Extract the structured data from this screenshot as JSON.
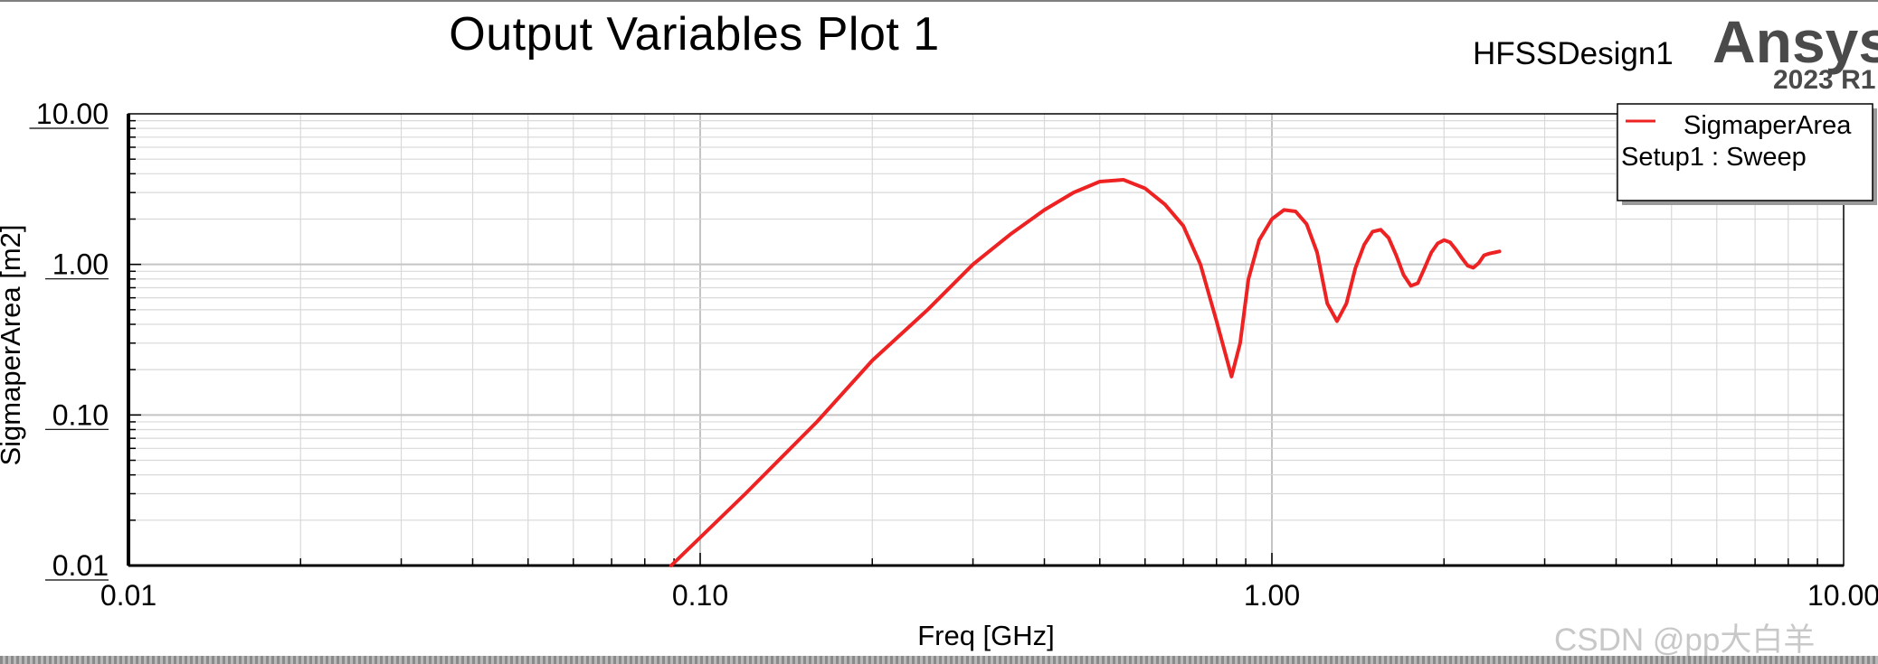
{
  "header": {
    "title": "Output Variables Plot 1",
    "design_name": "HFSSDesign1",
    "brand": "Ansys",
    "version": "2023 R1"
  },
  "watermark": "CSDN @pp大白羊",
  "chart_data": {
    "type": "line",
    "title": "Output Variables Plot 1",
    "xlabel": "Freq [GHz]",
    "ylabel": "SigmaperArea [m2]",
    "x_scale": "log",
    "y_scale": "log",
    "xlim": [
      0.01,
      10.0
    ],
    "ylim": [
      0.01,
      10.0
    ],
    "x_ticks": [
      0.01,
      0.1,
      1.0,
      10.0
    ],
    "x_tick_labels": [
      "0.01",
      "0.10",
      "1.00",
      "10.00"
    ],
    "y_ticks": [
      0.01,
      0.1,
      1.0,
      10.0
    ],
    "y_tick_labels": [
      "0.01",
      "0.10",
      "1.00",
      "10.00"
    ],
    "grid": true,
    "legend_position": "top-right",
    "colors": {
      "series": "#ee2222",
      "grid": "#d9d9d9",
      "axis": "#000000"
    },
    "legend": {
      "entries": [
        "SigmaperArea",
        "Setup1 : Sweep"
      ]
    },
    "series": [
      {
        "name": "SigmaperArea",
        "x": [
          0.089,
          0.12,
          0.16,
          0.2,
          0.25,
          0.3,
          0.35,
          0.4,
          0.45,
          0.5,
          0.55,
          0.6,
          0.65,
          0.7,
          0.75,
          0.8,
          0.85,
          0.88,
          0.91,
          0.95,
          1.0,
          1.05,
          1.1,
          1.15,
          1.2,
          1.25,
          1.3,
          1.35,
          1.4,
          1.45,
          1.5,
          1.55,
          1.6,
          1.65,
          1.7,
          1.75,
          1.8,
          1.85,
          1.9,
          1.95,
          2.0,
          2.05,
          2.1,
          2.15,
          2.2,
          2.25,
          2.3,
          2.35,
          2.4,
          2.45,
          2.5
        ],
        "y": [
          0.01,
          0.03,
          0.09,
          0.23,
          0.5,
          1.0,
          1.6,
          2.3,
          3.0,
          3.55,
          3.65,
          3.2,
          2.5,
          1.8,
          1.0,
          0.42,
          0.18,
          0.3,
          0.8,
          1.45,
          2.0,
          2.3,
          2.25,
          1.85,
          1.2,
          0.55,
          0.42,
          0.55,
          0.95,
          1.35,
          1.65,
          1.7,
          1.5,
          1.15,
          0.85,
          0.72,
          0.75,
          0.95,
          1.2,
          1.38,
          1.45,
          1.4,
          1.25,
          1.1,
          0.98,
          0.95,
          1.02,
          1.15,
          1.18,
          1.2,
          1.22
        ]
      }
    ]
  }
}
